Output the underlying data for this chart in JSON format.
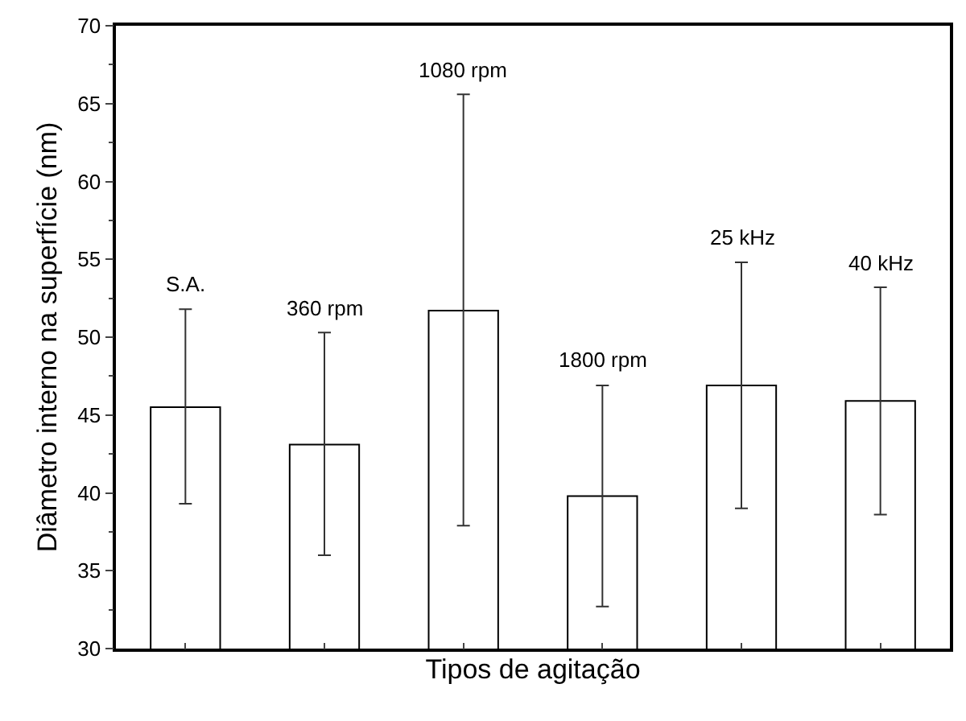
{
  "chart_data": {
    "type": "bar",
    "xlabel": "Tipos de agitação",
    "ylabel": "Diâmetro interno na superfície (nm)",
    "categories": [
      "S.A.",
      "360 rpm",
      "1080 rpm",
      "1800 rpm",
      "25 kHz",
      "40 kHz"
    ],
    "values": [
      45.5,
      43.1,
      51.7,
      39.8,
      46.9,
      45.9
    ],
    "errors": [
      [
        39.3,
        51.8
      ],
      [
        36.0,
        50.3
      ],
      [
        37.9,
        65.6
      ],
      [
        32.7,
        46.9
      ],
      [
        39.0,
        54.8
      ],
      [
        38.6,
        53.2
      ]
    ],
    "color": "#ffffff",
    "ylim": [
      30,
      70
    ],
    "yticks": [
      30,
      35,
      40,
      45,
      50,
      55,
      60,
      65,
      70
    ],
    "tick_labels": "y"
  }
}
